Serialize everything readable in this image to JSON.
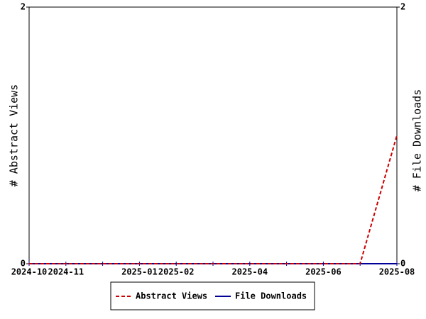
{
  "chart_data": {
    "type": "line",
    "categories": [
      "2024-10",
      "2024-11",
      null,
      "2025-01",
      "2025-02",
      null,
      "2025-04",
      null,
      "2025-06",
      null,
      "2025-08"
    ],
    "series": [
      {
        "name": "Abstract Views",
        "color": "#cc0000",
        "line_style": "dashed",
        "values": [
          0,
          0,
          0,
          0,
          0,
          0,
          0,
          0,
          0,
          0,
          1
        ]
      },
      {
        "name": "File Downloads",
        "color": "#000099",
        "line_style": "solid",
        "axis": "y2",
        "values": [
          0,
          0,
          0,
          0,
          0,
          0,
          0,
          0,
          0,
          0,
          0
        ]
      }
    ],
    "ylabel": "# Abstract Views",
    "y2label": "# File Downloads",
    "ylim": [
      0,
      2
    ],
    "yticks": [
      0,
      2
    ],
    "y2lim": [
      0,
      2
    ],
    "y2ticks": [
      0,
      2
    ],
    "legend": "bottom"
  }
}
